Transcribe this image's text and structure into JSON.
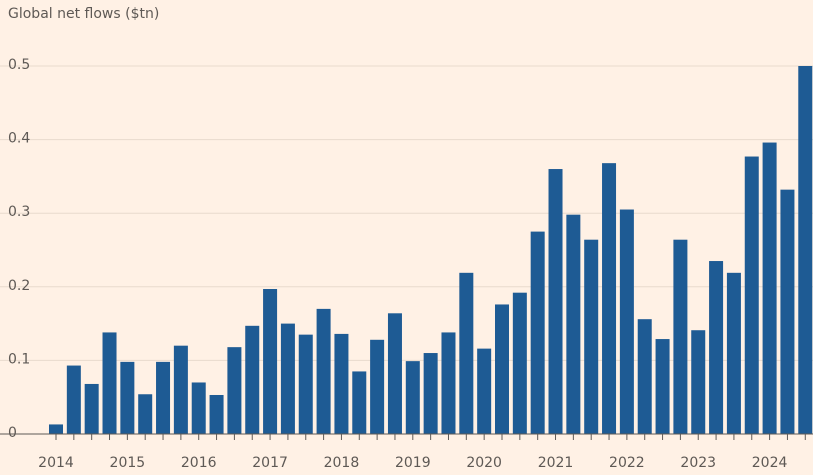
{
  "chart_data": {
    "type": "bar",
    "title": "Global net flows ($tn)",
    "categories": [
      "2014",
      null,
      null,
      null,
      "2015",
      null,
      null,
      null,
      "2016",
      null,
      null,
      null,
      "2017",
      null,
      null,
      null,
      "2018",
      null,
      null,
      null,
      "2019",
      null,
      null,
      null,
      "2020",
      null,
      null,
      null,
      "2021",
      null,
      null,
      null,
      "2022",
      null,
      null,
      null,
      "2023",
      null,
      null,
      null,
      "2024",
      null,
      null
    ],
    "values": [
      0.013,
      0.093,
      0.068,
      0.138,
      0.098,
      0.054,
      0.098,
      0.12,
      0.07,
      0.053,
      0.118,
      0.147,
      0.197,
      0.15,
      0.135,
      0.17,
      0.136,
      0.085,
      0.128,
      0.164,
      0.099,
      0.11,
      0.138,
      0.219,
      0.116,
      0.176,
      0.192,
      0.275,
      0.36,
      0.298,
      0.264,
      0.368,
      0.305,
      0.156,
      0.129,
      0.264,
      0.141,
      0.235,
      0.219,
      0.377,
      0.396,
      0.332,
      0.5
    ],
    "color": "#1e5b94",
    "ylim": [
      0,
      0.5
    ],
    "yticks": [
      0,
      0.1,
      0.2,
      0.3,
      0.4,
      0.5
    ],
    "grid": true
  }
}
